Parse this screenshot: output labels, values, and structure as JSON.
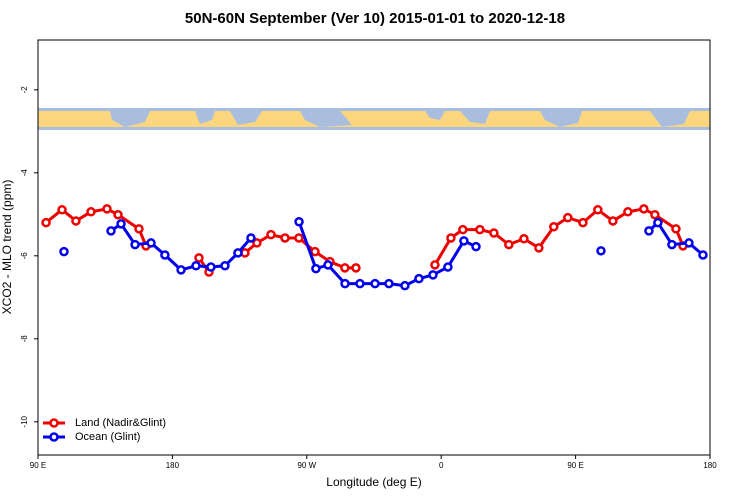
{
  "chart_data": {
    "type": "line",
    "title": "50N-60N September (Ver 10)   2015-01-01 to 2020-12-18",
    "x_label": "Longitude (deg E)",
    "y_label": "XCO2 - MLO trend (ppm)",
    "xlim": [
      90,
      540
    ],
    "ylim": [
      -10.8,
      -0.8
    ],
    "xticks": [
      {
        "value": 90,
        "label": "90 E"
      },
      {
        "value": 180,
        "label": "180"
      },
      {
        "value": 270,
        "label": "90 W"
      },
      {
        "value": 360,
        "label": "0"
      },
      {
        "value": 450,
        "label": "90 E"
      },
      {
        "value": 540,
        "label": "180"
      }
    ],
    "yticks": [
      -2,
      -4,
      -6,
      -8,
      -10
    ],
    "legend": "bottom-left",
    "series": [
      {
        "name": "Land (Nadir&Glint)",
        "color": "#ee0000",
        "x": [
          95.4,
          106.1,
          115.4,
          125.5,
          136.2,
          143.6,
          157.6,
          162.3,
          197.8,
          204.5,
          228.6,
          236.6,
          246,
          255.4,
          264.7,
          275.5,
          285.5,
          295.5,
          302.9,
          355.8,
          366.5,
          374.5,
          385.9,
          395.3,
          405.3,
          415.4,
          425.4,
          435.4,
          444.8,
          454.9,
          464.9,
          475,
          485,
          495.7,
          503.1,
          517.2,
          521.9
        ],
        "values": [
          -5.2,
          -4.89,
          -5.16,
          -4.94,
          -4.87,
          -5.01,
          -5.35,
          -5.76,
          -6.05,
          -6.39,
          -5.93,
          -5.69,
          -5.49,
          -5.57,
          -5.57,
          -5.9,
          -6.14,
          -6.29,
          -6.29,
          -6.22,
          -5.57,
          -5.37,
          -5.37,
          -5.45,
          -5.73,
          -5.59,
          -5.81,
          -5.3,
          -5.08,
          -5.2,
          -4.89,
          -5.16,
          -4.94,
          -4.87,
          -5.01,
          -5.35,
          -5.76
        ]
      },
      {
        "name": "Ocean (Glint)",
        "color": "#0000ee",
        "x": [
          107.4,
          138.9,
          145.6,
          155,
          165.7,
          175,
          185.8,
          195.8,
          205.8,
          215.2,
          223.9,
          232.6,
          264.8,
          276.1,
          284.2,
          295.6,
          305.6,
          315.7,
          325,
          335.7,
          345.1,
          354.5,
          364.5,
          375.2,
          383.3,
          467,
          499.1,
          505.1,
          514.5,
          525.9,
          535.3
        ],
        "values": [
          -5.9,
          -5.4,
          -5.23,
          -5.73,
          -5.69,
          -5.98,
          -6.34,
          -6.24,
          -6.27,
          -6.24,
          -5.93,
          -5.57,
          -5.18,
          -6.31,
          -6.22,
          -6.67,
          -6.67,
          -6.67,
          -6.67,
          -6.72,
          -6.55,
          -6.46,
          -6.27,
          -5.64,
          -5.78,
          -5.88,
          -5.4,
          -5.2,
          -5.73,
          -5.69,
          -5.98
        ]
      }
    ]
  }
}
